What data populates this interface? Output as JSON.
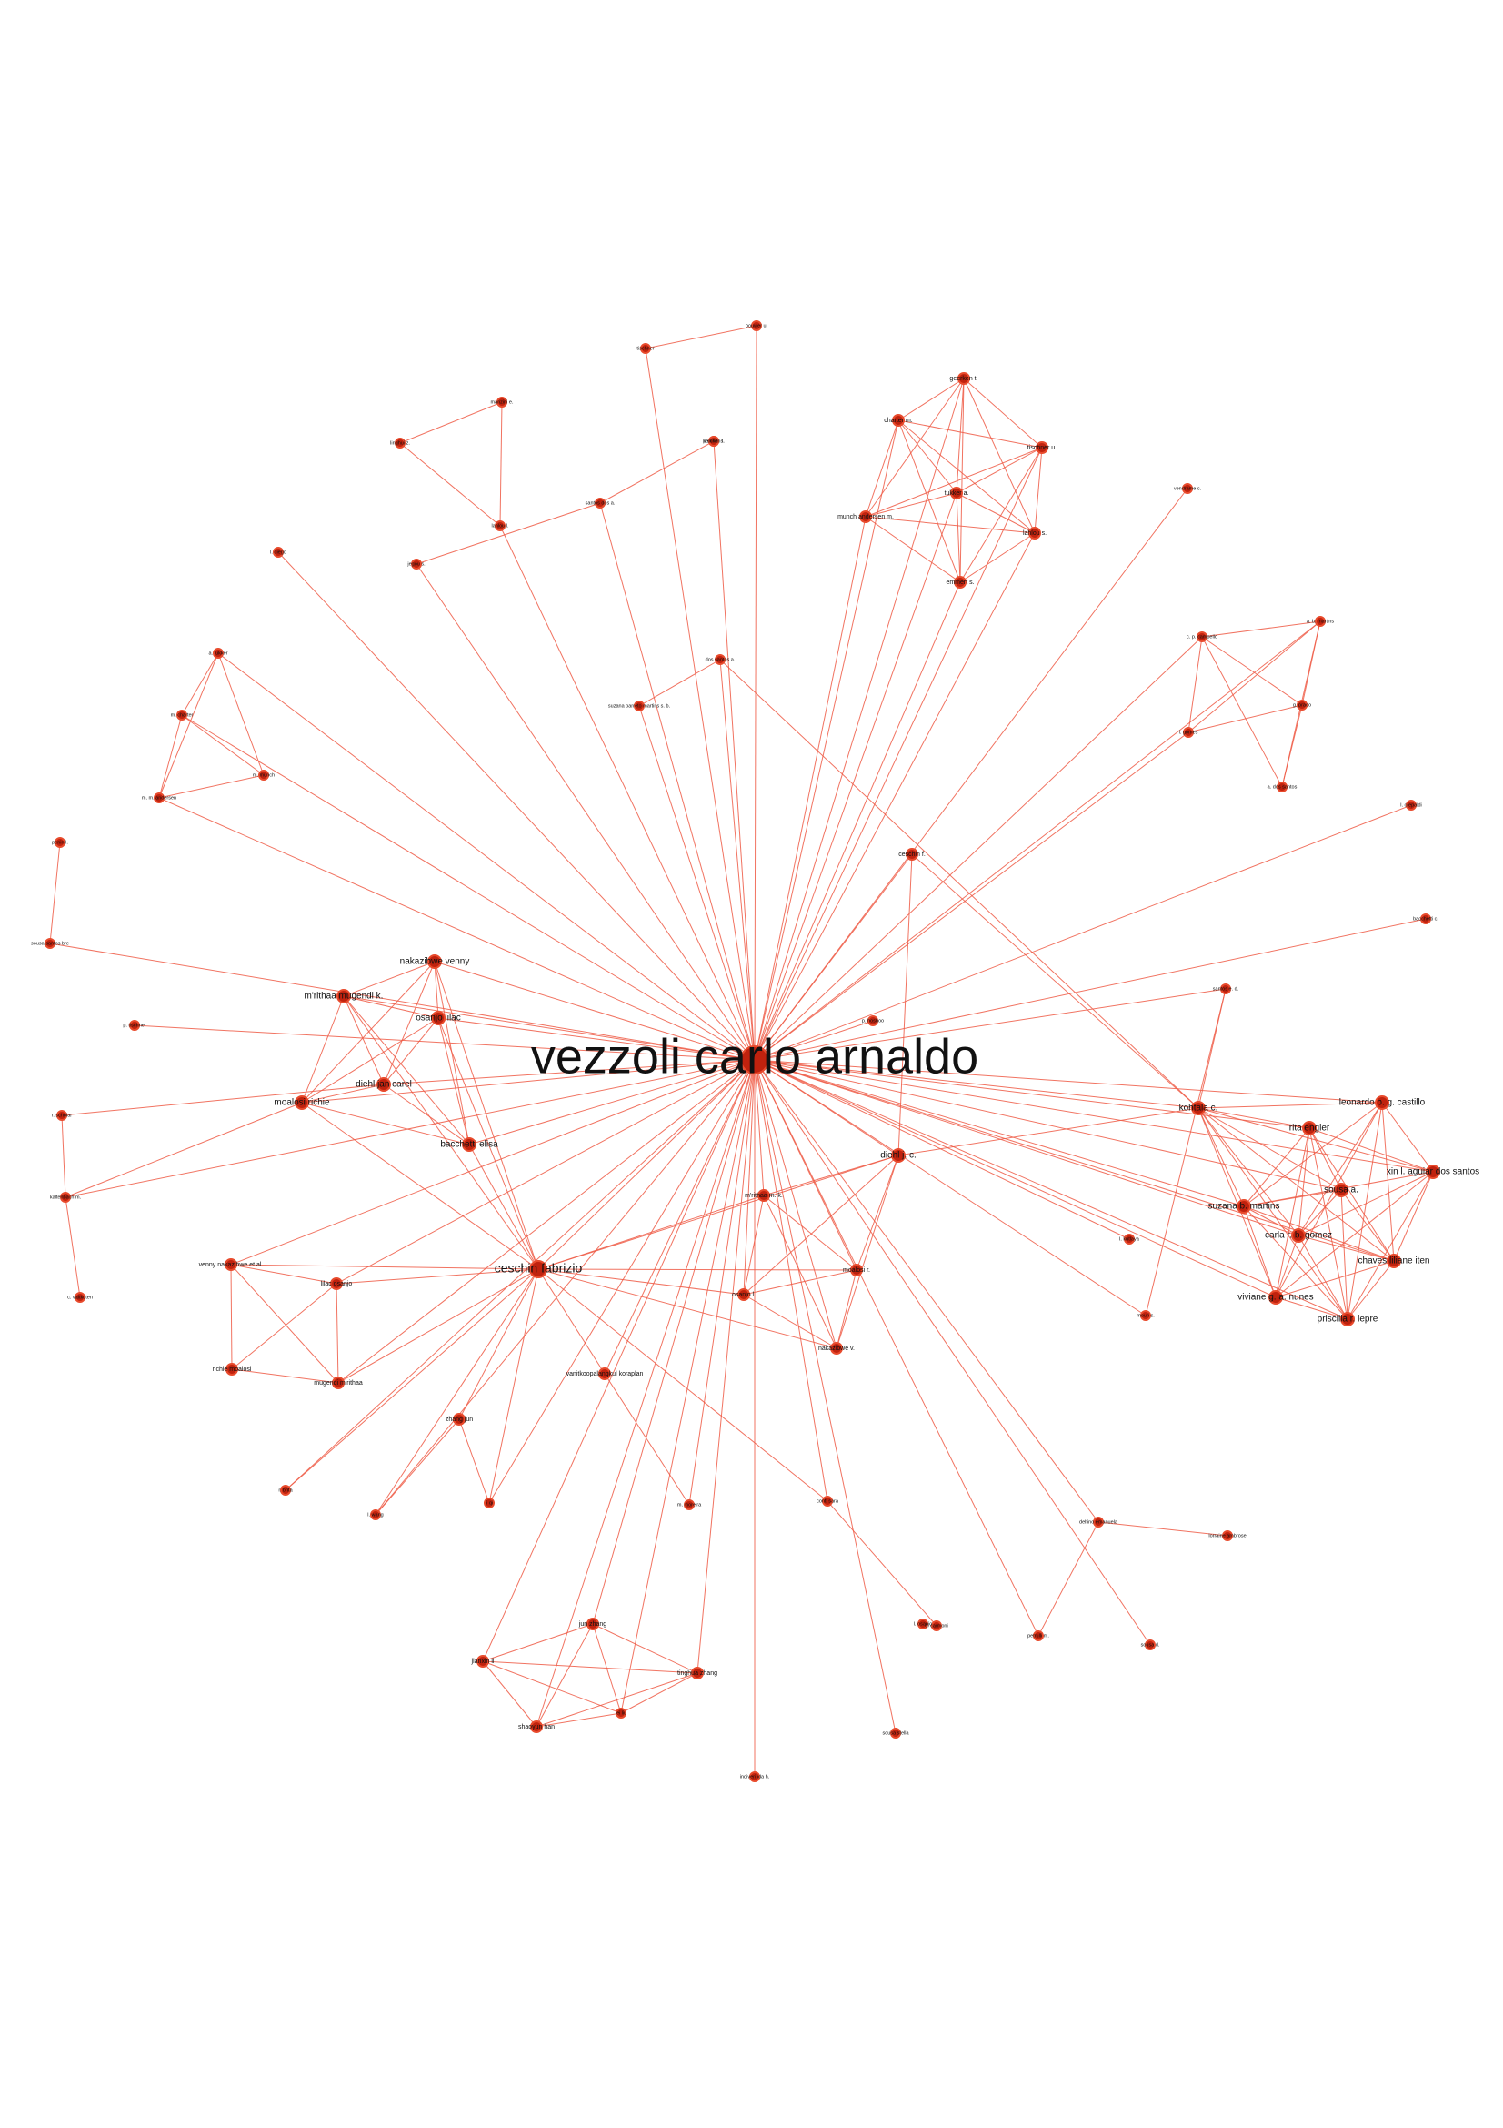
{
  "graph": {
    "colors": {
      "edge": "#ef5b45",
      "node_fill": "#c0220e",
      "node_stroke": "#e84a2c",
      "label": "#111111"
    },
    "center": "vezzoli carlo arnaldo",
    "nodes": [
      {
        "id": "vezzoli carlo arnaldo",
        "size": "xl"
      },
      {
        "id": "ceschin fabrizio",
        "size": "l"
      },
      {
        "id": "kohtala c.",
        "size": "m"
      },
      {
        "id": "diehl j. c.",
        "size": "m"
      },
      {
        "id": "bacchetti elisa",
        "size": "m"
      },
      {
        "id": "leonardo b. g. castillo",
        "size": "m"
      },
      {
        "id": "xin l. aguiar dos santos",
        "size": "m"
      },
      {
        "id": "suzana b. martins",
        "size": "m"
      },
      {
        "id": "carla r. b. gomez",
        "size": "m"
      },
      {
        "id": "chaves liliane iten",
        "size": "m"
      },
      {
        "id": "viviane g. a. nunes",
        "size": "m"
      },
      {
        "id": "priscilla r. lepre",
        "size": "m"
      },
      {
        "id": "rita engler",
        "size": "m"
      },
      {
        "id": "sousa a.",
        "size": "m"
      },
      {
        "id": "nakazibwe venny",
        "size": "m"
      },
      {
        "id": "m'rithaa mugendi k.",
        "size": "m"
      },
      {
        "id": "osanjo lilac",
        "size": "m"
      },
      {
        "id": "moalosi richie",
        "size": "m"
      },
      {
        "id": "diehl jan carel",
        "size": "m"
      },
      {
        "id": "geerken t.",
        "size": "s"
      },
      {
        "id": "charter m.",
        "size": "s"
      },
      {
        "id": "tukker a.",
        "size": "s"
      },
      {
        "id": "munch andersen m.",
        "size": "s"
      },
      {
        "id": "tischner u.",
        "size": "s"
      },
      {
        "id": "lahlou s.",
        "size": "s"
      },
      {
        "id": "emmert s.",
        "size": "s"
      },
      {
        "id": "bouwer u.",
        "size": "xs"
      },
      {
        "id": "tischner",
        "size": "xs"
      },
      {
        "id": "manzini e.",
        "size": "xs"
      },
      {
        "id": "linghui z.",
        "size": "xs"
      },
      {
        "id": "lahlou l.",
        "size": "xs"
      },
      {
        "id": "jegou s.",
        "size": "xs"
      },
      {
        "id": "santos dos a.",
        "size": "xs"
      },
      {
        "id": "krucken l.",
        "size": "xs"
      },
      {
        "id": "l. diego",
        "size": "xs"
      },
      {
        "id": "penin l. s.",
        "size": "xs"
      },
      {
        "id": "dos santos a.",
        "size": "xs"
      },
      {
        "id": "suzana barreto martins s. b.",
        "size": "xs"
      },
      {
        "id": "vendrame c.",
        "size": "xs"
      },
      {
        "id": "c. p. campello",
        "size": "xs"
      },
      {
        "id": "a. b. martins",
        "size": "xs"
      },
      {
        "id": "g. prado",
        "size": "xs"
      },
      {
        "id": "l. gomes",
        "size": "xs"
      },
      {
        "id": "a. dos santos",
        "size": "xs"
      },
      {
        "id": "a. tukker",
        "size": "xs"
      },
      {
        "id": "m. charter",
        "size": "xs"
      },
      {
        "id": "m. munch",
        "size": "xs"
      },
      {
        "id": "m. m. andersen",
        "size": "xs"
      },
      {
        "id": "l. crepaldi",
        "size": "xs"
      },
      {
        "id": "ceschin f.",
        "size": "s"
      },
      {
        "id": "bacchetti c.",
        "size": "xs"
      },
      {
        "id": "penin l.",
        "size": "xs"
      },
      {
        "id": "sousa santos bre",
        "size": "xs"
      },
      {
        "id": "santos e. d.",
        "size": "xs"
      },
      {
        "id": "p. tischner",
        "size": "xs"
      },
      {
        "id": "p. hoshoo",
        "size": "xs"
      },
      {
        "id": "l. kutlaya",
        "size": "xs"
      },
      {
        "id": "r. scholar",
        "size": "xs"
      },
      {
        "id": "kaltenbach m.",
        "size": "xs"
      },
      {
        "id": "c. vaitkuten",
        "size": "xs"
      },
      {
        "id": "m'rithaa m. k.",
        "size": "s"
      },
      {
        "id": "venny nakazibwe et al.",
        "size": "s"
      },
      {
        "id": "lilac osanjo",
        "size": "s"
      },
      {
        "id": "richie moalosi",
        "size": "s"
      },
      {
        "id": "mugendi m'rithaa",
        "size": "s"
      },
      {
        "id": "moalosi r.",
        "size": "s"
      },
      {
        "id": "osanjo l.",
        "size": "s"
      },
      {
        "id": "nakazibwe v.",
        "size": "s"
      },
      {
        "id": "vanitkoopalangkul koraplan",
        "size": "s"
      },
      {
        "id": "zhang jun",
        "size": "s"
      },
      {
        "id": "li qi",
        "size": "xs"
      },
      {
        "id": "r. brita",
        "size": "xs"
      },
      {
        "id": "l. wang",
        "size": "xs"
      },
      {
        "id": "m. moreira",
        "size": "xs"
      },
      {
        "id": "conti sara",
        "size": "xs"
      },
      {
        "id": "delfino emanuela",
        "size": "xs"
      },
      {
        "id": "lorraine ambrose",
        "size": "xs"
      },
      {
        "id": "c. carmoni",
        "size": "xs"
      },
      {
        "id": "petrulli m.",
        "size": "xs"
      },
      {
        "id": "mouri s.",
        "size": "xs"
      },
      {
        "id": "sousa d.",
        "size": "xs"
      },
      {
        "id": "jun zhang",
        "size": "s"
      },
      {
        "id": "jianxin li",
        "size": "s"
      },
      {
        "id": "tinghua zhang",
        "size": "s"
      },
      {
        "id": "shaoyun han",
        "size": "s"
      },
      {
        "id": "lei liu",
        "size": "xs"
      },
      {
        "id": "sousa stella",
        "size": "xs"
      },
      {
        "id": "indiveri ida h.",
        "size": "xs"
      },
      {
        "id": "l. osanjo",
        "size": "xs"
      }
    ]
  }
}
